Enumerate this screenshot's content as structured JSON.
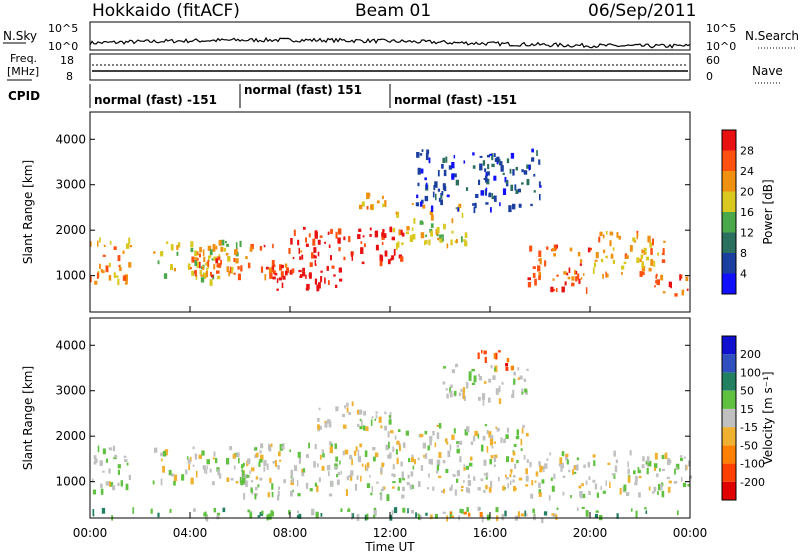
{
  "header": {
    "title": "Hokkaido (fitACF)",
    "beam": "Beam 01",
    "date": "06/Sep/2011"
  },
  "sky_panel": {
    "left_label": "N.Sky",
    "left_ticks": [
      "10^5",
      "10^0"
    ],
    "right_label": "N.Search",
    "right_ticks": [
      "10^5",
      "10^0"
    ]
  },
  "freq_panel": {
    "left_label_1": "Freq.",
    "left_label_2": "[MHz]",
    "left_ticks": [
      "18",
      "8"
    ],
    "right_label": "Nave",
    "right_ticks": [
      "60",
      "0"
    ]
  },
  "cpid": {
    "label": "CPID",
    "modes": [
      {
        "text": "normal (fast) -151"
      },
      {
        "text": "normal (fast) 151"
      },
      {
        "text": "normal (fast) -151"
      }
    ]
  },
  "chart_data": [
    {
      "type": "heatmap",
      "panel": "power",
      "ylabel": "Slant Range [km]",
      "ylim": [
        200,
        4600
      ],
      "yticks": [
        "1000",
        "2000",
        "3000",
        "4000"
      ],
      "colorbar_label": "Power [dB]",
      "colorbar_ticks": [
        "4",
        "8",
        "12",
        "16",
        "20",
        "24",
        "28"
      ],
      "colors": [
        "#1010ff",
        "#1a3fa0",
        "#2b6f5e",
        "#4aa84a",
        "#d8c820",
        "#f09010",
        "#ff5010",
        "#e81010"
      ],
      "segments": [
        {
          "x0": 0.0,
          "x1": 1.6,
          "y0": 800,
          "y1": 1900,
          "level": 5
        },
        {
          "x0": 2.5,
          "x1": 6.0,
          "y0": 900,
          "y1": 1800,
          "level": 4
        },
        {
          "x0": 4.0,
          "x1": 8.5,
          "y0": 1000,
          "y1": 1700,
          "level": 6
        },
        {
          "x0": 7.0,
          "x1": 10.0,
          "y0": 700,
          "y1": 1300,
          "level": 7
        },
        {
          "x0": 8.0,
          "x1": 12.5,
          "y0": 1300,
          "y1": 2100,
          "level": 7
        },
        {
          "x0": 10.5,
          "x1": 12.0,
          "y0": 2500,
          "y1": 2900,
          "level": 5
        },
        {
          "x0": 12.0,
          "x1": 15.0,
          "y0": 1700,
          "y1": 2600,
          "level": 4
        },
        {
          "x0": 13.0,
          "x1": 18.0,
          "y0": 2500,
          "y1": 3800,
          "level": 1
        },
        {
          "x0": 17.5,
          "x1": 20.0,
          "y0": 700,
          "y1": 1700,
          "level": 6
        },
        {
          "x0": 20.0,
          "x1": 23.0,
          "y0": 1000,
          "y1": 2000,
          "level": 5
        },
        {
          "x0": 22.5,
          "x1": 24.0,
          "y0": 600,
          "y1": 1100,
          "level": 6
        }
      ]
    },
    {
      "type": "heatmap",
      "panel": "velocity",
      "ylabel": "Slant Range [km]",
      "ylim": [
        200,
        4600
      ],
      "yticks": [
        "1000",
        "2000",
        "3000",
        "4000"
      ],
      "xlabel": "Time UT",
      "xticks": [
        "00:00",
        "04:00",
        "08:00",
        "12:00",
        "16:00",
        "20:00",
        "00:00"
      ],
      "colorbar_label": "Velocity [m s⁻¹]",
      "colorbar_ticks": [
        "200",
        "100",
        "50",
        "15",
        "-15",
        "-50",
        "-100",
        "-200"
      ],
      "colors": [
        "#1010d0",
        "#3050c0",
        "#208060",
        "#60c040",
        "#c0c0c0",
        "#f0b030",
        "#ff8000",
        "#ff4000",
        "#e00000"
      ],
      "segments": [
        {
          "x0": 0.0,
          "x1": 1.6,
          "y0": 800,
          "y1": 1800,
          "level": 4
        },
        {
          "x0": 2.5,
          "x1": 7.0,
          "y0": 1000,
          "y1": 1800,
          "level": 4
        },
        {
          "x0": 6.0,
          "x1": 12.5,
          "y0": 700,
          "y1": 1900,
          "level": 4
        },
        {
          "x0": 9.0,
          "x1": 12.0,
          "y0": 2100,
          "y1": 2800,
          "level": 4
        },
        {
          "x0": 12.0,
          "x1": 17.5,
          "y0": 800,
          "y1": 2300,
          "level": 4
        },
        {
          "x0": 14.0,
          "x1": 17.5,
          "y0": 2800,
          "y1": 3600,
          "level": 4
        },
        {
          "x0": 15.5,
          "x1": 17.0,
          "y0": 3500,
          "y1": 3900,
          "level": 7
        },
        {
          "x0": 17.5,
          "x1": 24.0,
          "y0": 700,
          "y1": 1700,
          "level": 4
        },
        {
          "x0": 0.0,
          "x1": 24.0,
          "y0": 250,
          "y1": 450,
          "level": 3
        },
        {
          "x0": 13.0,
          "x1": 19.0,
          "y0": 200,
          "y1": 350,
          "level": 5
        }
      ]
    }
  ]
}
